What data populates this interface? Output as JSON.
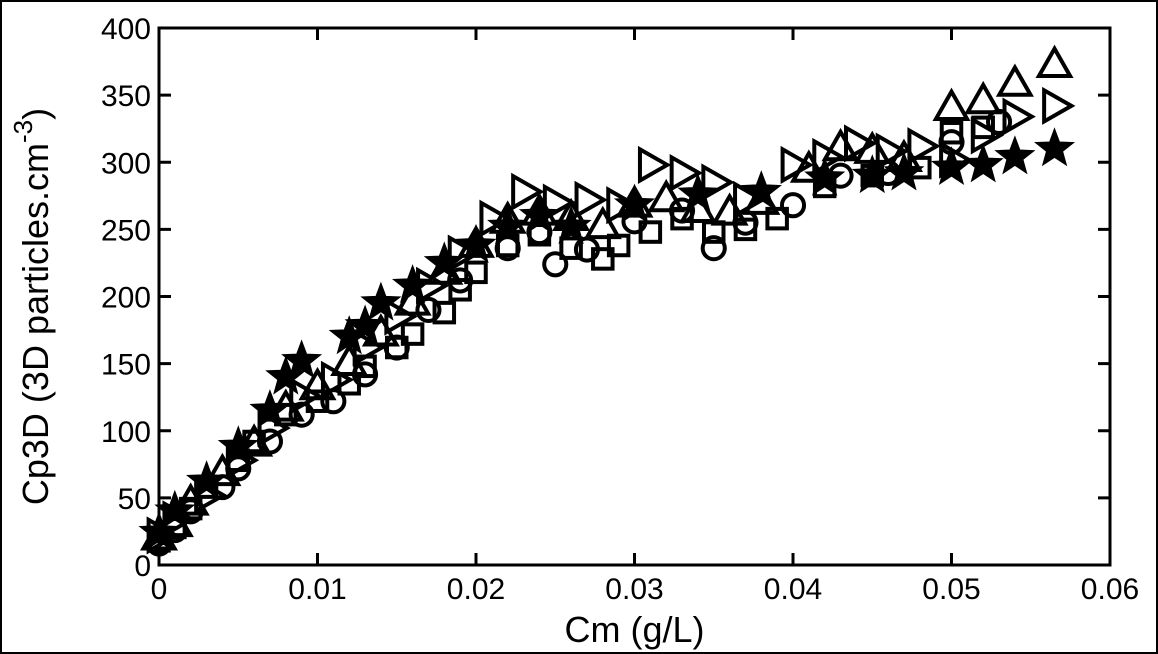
{
  "chart_data": {
    "type": "scatter",
    "title": "",
    "xlabel": "Cm (g/L)",
    "ylabel_main": "Cp3D (3D particles.cm",
    "ylabel_sup": "-3",
    "ylabel_close": ")",
    "xlim": [
      0,
      0.06
    ],
    "ylim": [
      0,
      400
    ],
    "xticks": [
      0,
      0.01,
      0.02,
      0.03,
      0.04,
      0.05,
      0.06
    ],
    "xtick_labels": [
      "0",
      "0.01",
      "0.02",
      "0.03",
      "0.04",
      "0.05",
      "0.06"
    ],
    "yticks": [
      0,
      50,
      100,
      150,
      200,
      250,
      300,
      350,
      400
    ],
    "ytick_labels": [
      "0",
      "50",
      "100",
      "150",
      "200",
      "250",
      "300",
      "350",
      "400"
    ],
    "grid": false,
    "legend": "none",
    "series": [
      {
        "marker": "square",
        "points": [
          [
            0,
            18
          ],
          [
            0.001,
            28
          ],
          [
            0.002,
            42
          ],
          [
            0.003,
            58
          ],
          [
            0.005,
            78
          ],
          [
            0.006,
            92
          ],
          [
            0.008,
            112
          ],
          [
            0.01,
            122
          ],
          [
            0.012,
            135
          ],
          [
            0.013,
            148
          ],
          [
            0.015,
            162
          ],
          [
            0.016,
            172
          ],
          [
            0.018,
            188
          ],
          [
            0.019,
            205
          ],
          [
            0.02,
            218
          ],
          [
            0.022,
            238
          ],
          [
            0.024,
            246
          ],
          [
            0.026,
            236
          ],
          [
            0.028,
            228
          ],
          [
            0.029,
            238
          ],
          [
            0.031,
            248
          ],
          [
            0.033,
            258
          ],
          [
            0.035,
            248
          ],
          [
            0.037,
            250
          ],
          [
            0.039,
            258
          ],
          [
            0.042,
            282
          ],
          [
            0.045,
            290
          ],
          [
            0.048,
            296
          ],
          [
            0.05,
            322
          ],
          [
            0.052,
            326
          ]
        ]
      },
      {
        "marker": "circle",
        "points": [
          [
            0,
            16
          ],
          [
            0.001,
            26
          ],
          [
            0.002,
            40
          ],
          [
            0.004,
            58
          ],
          [
            0.005,
            72
          ],
          [
            0.007,
            92
          ],
          [
            0.009,
            112
          ],
          [
            0.011,
            122
          ],
          [
            0.013,
            142
          ],
          [
            0.015,
            162
          ],
          [
            0.017,
            190
          ],
          [
            0.019,
            212
          ],
          [
            0.022,
            236
          ],
          [
            0.024,
            248
          ],
          [
            0.025,
            224
          ],
          [
            0.027,
            235
          ],
          [
            0.03,
            256
          ],
          [
            0.033,
            264
          ],
          [
            0.035,
            236
          ],
          [
            0.037,
            255
          ],
          [
            0.04,
            268
          ],
          [
            0.043,
            290
          ],
          [
            0.046,
            292
          ],
          [
            0.05,
            315
          ],
          [
            0.053,
            330
          ]
        ]
      },
      {
        "marker": "triangle-up",
        "points": [
          [
            0,
            20
          ],
          [
            0.001,
            30
          ],
          [
            0.002,
            46
          ],
          [
            0.004,
            68
          ],
          [
            0.006,
            90
          ],
          [
            0.008,
            116
          ],
          [
            0.01,
            132
          ],
          [
            0.012,
            150
          ],
          [
            0.014,
            172
          ],
          [
            0.016,
            195
          ],
          [
            0.018,
            218
          ],
          [
            0.02,
            238
          ],
          [
            0.022,
            256
          ],
          [
            0.024,
            262
          ],
          [
            0.026,
            258
          ],
          [
            0.028,
            252
          ],
          [
            0.03,
            268
          ],
          [
            0.032,
            272
          ],
          [
            0.034,
            264
          ],
          [
            0.036,
            262
          ],
          [
            0.038,
            270
          ],
          [
            0.041,
            294
          ],
          [
            0.043,
            310
          ],
          [
            0.045,
            308
          ],
          [
            0.047,
            302
          ],
          [
            0.05,
            340
          ],
          [
            0.052,
            345
          ],
          [
            0.054,
            358
          ],
          [
            0.0565,
            372
          ]
        ]
      },
      {
        "marker": "triangle-right",
        "points": [
          [
            0,
            22
          ],
          [
            0.001,
            34
          ],
          [
            0.003,
            52
          ],
          [
            0.005,
            78
          ],
          [
            0.007,
            102
          ],
          [
            0.009,
            126
          ],
          [
            0.011,
            138
          ],
          [
            0.013,
            162
          ],
          [
            0.015,
            185
          ],
          [
            0.017,
            208
          ],
          [
            0.019,
            232
          ],
          [
            0.021,
            258
          ],
          [
            0.023,
            278
          ],
          [
            0.025,
            270
          ],
          [
            0.027,
            272
          ],
          [
            0.029,
            268
          ],
          [
            0.031,
            298
          ],
          [
            0.033,
            292
          ],
          [
            0.035,
            285
          ],
          [
            0.037,
            272
          ],
          [
            0.04,
            298
          ],
          [
            0.042,
            304
          ],
          [
            0.044,
            314
          ],
          [
            0.046,
            308
          ],
          [
            0.048,
            312
          ],
          [
            0.05,
            302
          ],
          [
            0.052,
            320
          ],
          [
            0.054,
            334
          ],
          [
            0.0565,
            342
          ]
        ]
      },
      {
        "marker": "star",
        "points": [
          [
            0,
            24
          ],
          [
            0.001,
            40
          ],
          [
            0.003,
            62
          ],
          [
            0.005,
            88
          ],
          [
            0.007,
            115
          ],
          [
            0.008,
            140
          ],
          [
            0.009,
            152
          ],
          [
            0.012,
            170
          ],
          [
            0.013,
            178
          ],
          [
            0.014,
            195
          ],
          [
            0.016,
            208
          ],
          [
            0.018,
            225
          ],
          [
            0.02,
            238
          ],
          [
            0.022,
            252
          ],
          [
            0.024,
            260
          ],
          [
            0.026,
            252
          ],
          [
            0.03,
            268
          ],
          [
            0.034,
            276
          ],
          [
            0.038,
            278
          ],
          [
            0.042,
            288
          ],
          [
            0.045,
            290
          ],
          [
            0.047,
            292
          ],
          [
            0.05,
            296
          ],
          [
            0.052,
            298
          ],
          [
            0.054,
            304
          ],
          [
            0.0565,
            310
          ]
        ]
      }
    ]
  }
}
